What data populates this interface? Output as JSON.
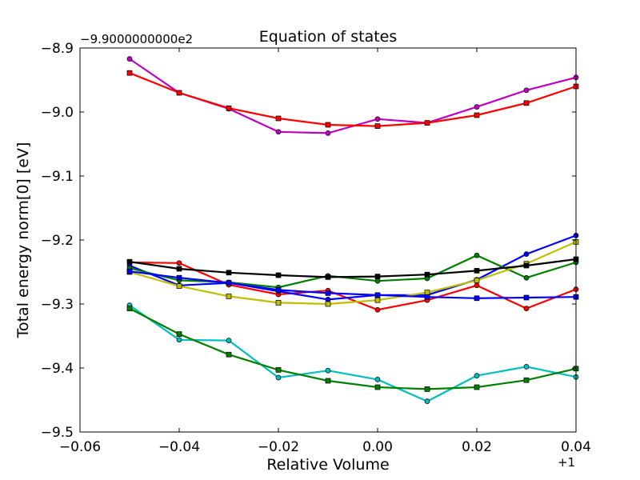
{
  "chart_data": {
    "type": "line",
    "title": "Equation of states",
    "xlabel": "Relative Volume",
    "ylabel": "Total energy norm[0] [eV]",
    "x_offset_label": "+1",
    "y_offset_label": "−9.9000000000e2",
    "xlim": [
      -0.06,
      0.04
    ],
    "ylim": [
      -9.5,
      -8.9
    ],
    "x_ticks": [
      "−0.06",
      "−0.04",
      "−0.02",
      "0.00",
      "0.02",
      "0.04"
    ],
    "y_ticks": [
      "−8.9",
      "−9.0",
      "−9.1",
      "−9.2",
      "−9.3",
      "−9.4",
      "−9.5"
    ],
    "x_tick_values": [
      -0.06,
      -0.04,
      -0.02,
      0.0,
      0.02,
      0.04
    ],
    "y_tick_values": [
      -8.9,
      -9.0,
      -9.1,
      -9.2,
      -9.3,
      -9.4,
      -9.5
    ],
    "grid": false,
    "x": [
      -0.05,
      -0.04,
      -0.03,
      -0.02,
      -0.01,
      0.0,
      0.01,
      0.02,
      0.03,
      0.04
    ],
    "series": [
      {
        "color": "#bf00bf",
        "marker": "circle",
        "values": [
          -8.917,
          -8.97,
          -8.995,
          -9.031,
          -9.033,
          -9.011,
          -9.017,
          -8.992,
          -8.966,
          -8.946
        ]
      },
      {
        "color": "#ff0000",
        "marker": "square",
        "values": [
          -8.939,
          -8.97,
          -8.994,
          -9.01,
          -9.02,
          -9.022,
          -9.017,
          -9.005,
          -8.986,
          -8.96
        ]
      },
      {
        "color": "#ff0000",
        "marker": "circle",
        "values": [
          -9.235,
          -9.236,
          -9.27,
          -9.285,
          -9.279,
          -9.309,
          -9.294,
          -9.271,
          -9.307,
          -9.277
        ]
      },
      {
        "color": "#0000ff",
        "marker": "circle",
        "values": [
          -9.24,
          -9.271,
          -9.267,
          -9.28,
          -9.293,
          -9.286,
          -9.286,
          -9.262,
          -9.222,
          -9.193
        ]
      },
      {
        "color": "#008000",
        "marker": "circle",
        "values": [
          -9.244,
          -9.263,
          -9.266,
          -9.274,
          -9.256,
          -9.264,
          -9.26,
          -9.224,
          -9.259,
          -9.235
        ]
      },
      {
        "color": "#bfbf00",
        "marker": "square",
        "values": [
          -9.25,
          -9.272,
          -9.288,
          -9.298,
          -9.3,
          -9.294,
          -9.282,
          -9.263,
          -9.237,
          -9.203
        ]
      },
      {
        "color": "#0000ff",
        "marker": "square",
        "values": [
          -9.249,
          -9.259,
          -9.267,
          -9.278,
          -9.283,
          -9.286,
          -9.289,
          -9.291,
          -9.29,
          -9.289
        ]
      },
      {
        "color": "#000000",
        "marker": "square",
        "values": [
          -9.234,
          -9.245,
          -9.251,
          -9.255,
          -9.258,
          -9.257,
          -9.254,
          -9.248,
          -9.24,
          -9.23
        ]
      },
      {
        "color": "#00bfbf",
        "marker": "circle",
        "values": [
          -9.302,
          -9.356,
          -9.357,
          -9.415,
          -9.404,
          -9.418,
          -9.452,
          -9.412,
          -9.398,
          -9.414
        ]
      },
      {
        "color": "#008000",
        "marker": "square",
        "values": [
          -9.307,
          -9.347,
          -9.379,
          -9.403,
          -9.42,
          -9.43,
          -9.433,
          -9.43,
          -9.419,
          -9.401
        ]
      }
    ]
  }
}
